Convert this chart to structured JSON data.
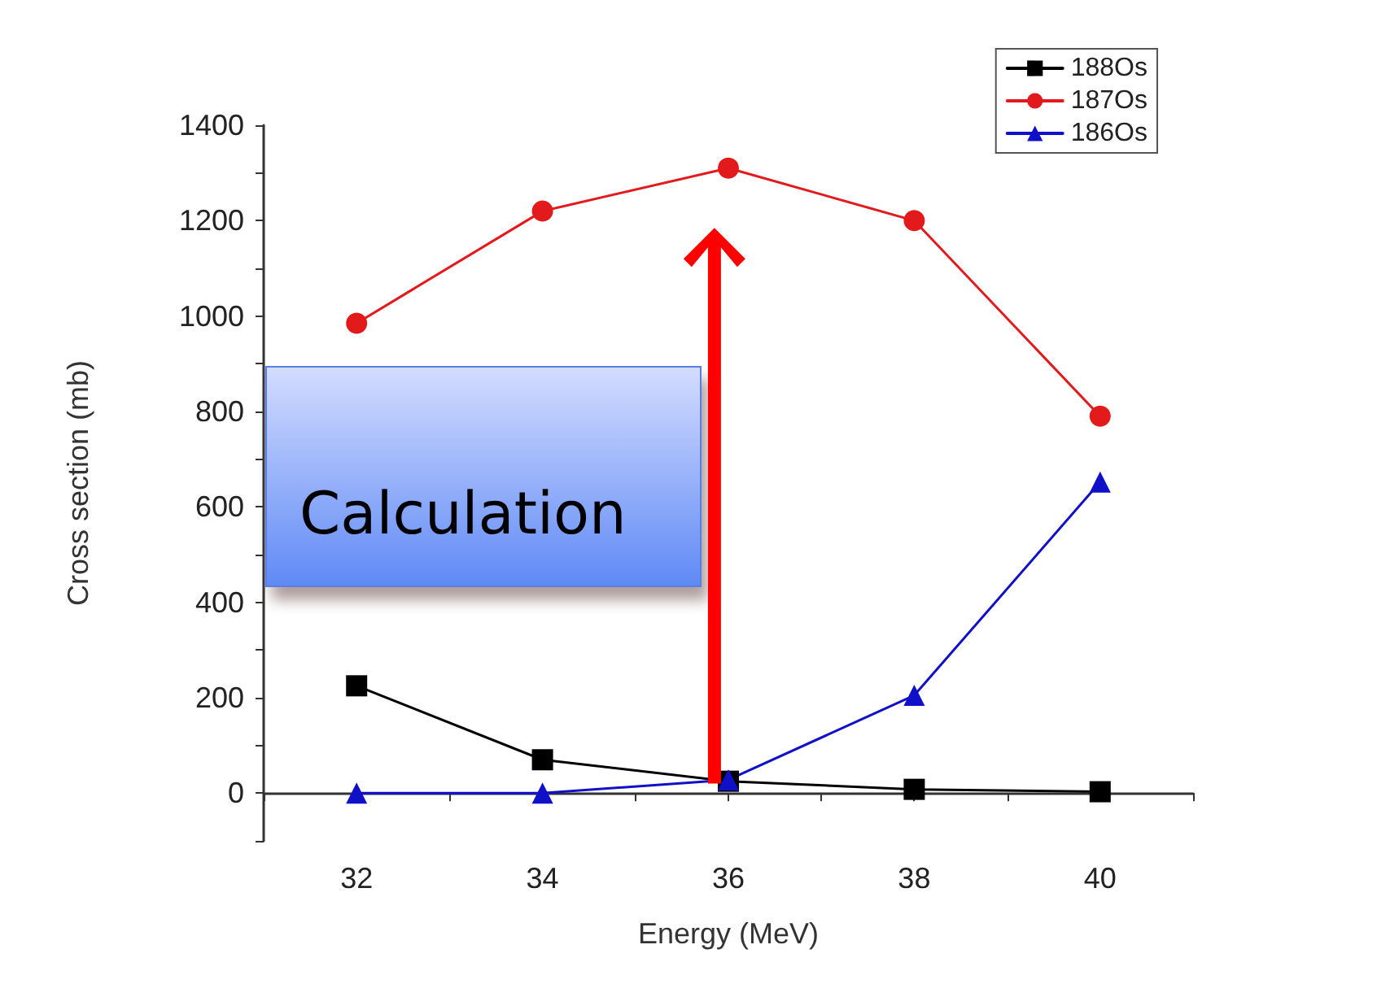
{
  "chart_data": {
    "type": "line",
    "xlabel": "Energy (MeV)",
    "ylabel": "Cross section (mb)",
    "x": [
      32,
      34,
      36,
      38,
      40
    ],
    "series": [
      {
        "name": "188Os",
        "color": "#000000",
        "marker": "square",
        "values": [
          225,
          70,
          25,
          8,
          3
        ]
      },
      {
        "name": "187Os",
        "color": "#e31a1c",
        "marker": "circle",
        "values": [
          985,
          1220,
          1310,
          1200,
          790
        ]
      },
      {
        "name": "186Os",
        "color": "#1010c8",
        "marker": "triangle",
        "values": [
          0,
          0,
          28,
          205,
          652
        ]
      }
    ],
    "xlim": [
      31,
      41
    ],
    "xticks": [
      32,
      34,
      36,
      38,
      40
    ],
    "ylim": [
      -100,
      1400
    ],
    "yticks": [
      0,
      200,
      400,
      600,
      800,
      1000,
      1200,
      1400
    ],
    "grid": false,
    "legend": "top right",
    "line_style": "solid",
    "annotations": [
      "Calculation"
    ]
  }
}
